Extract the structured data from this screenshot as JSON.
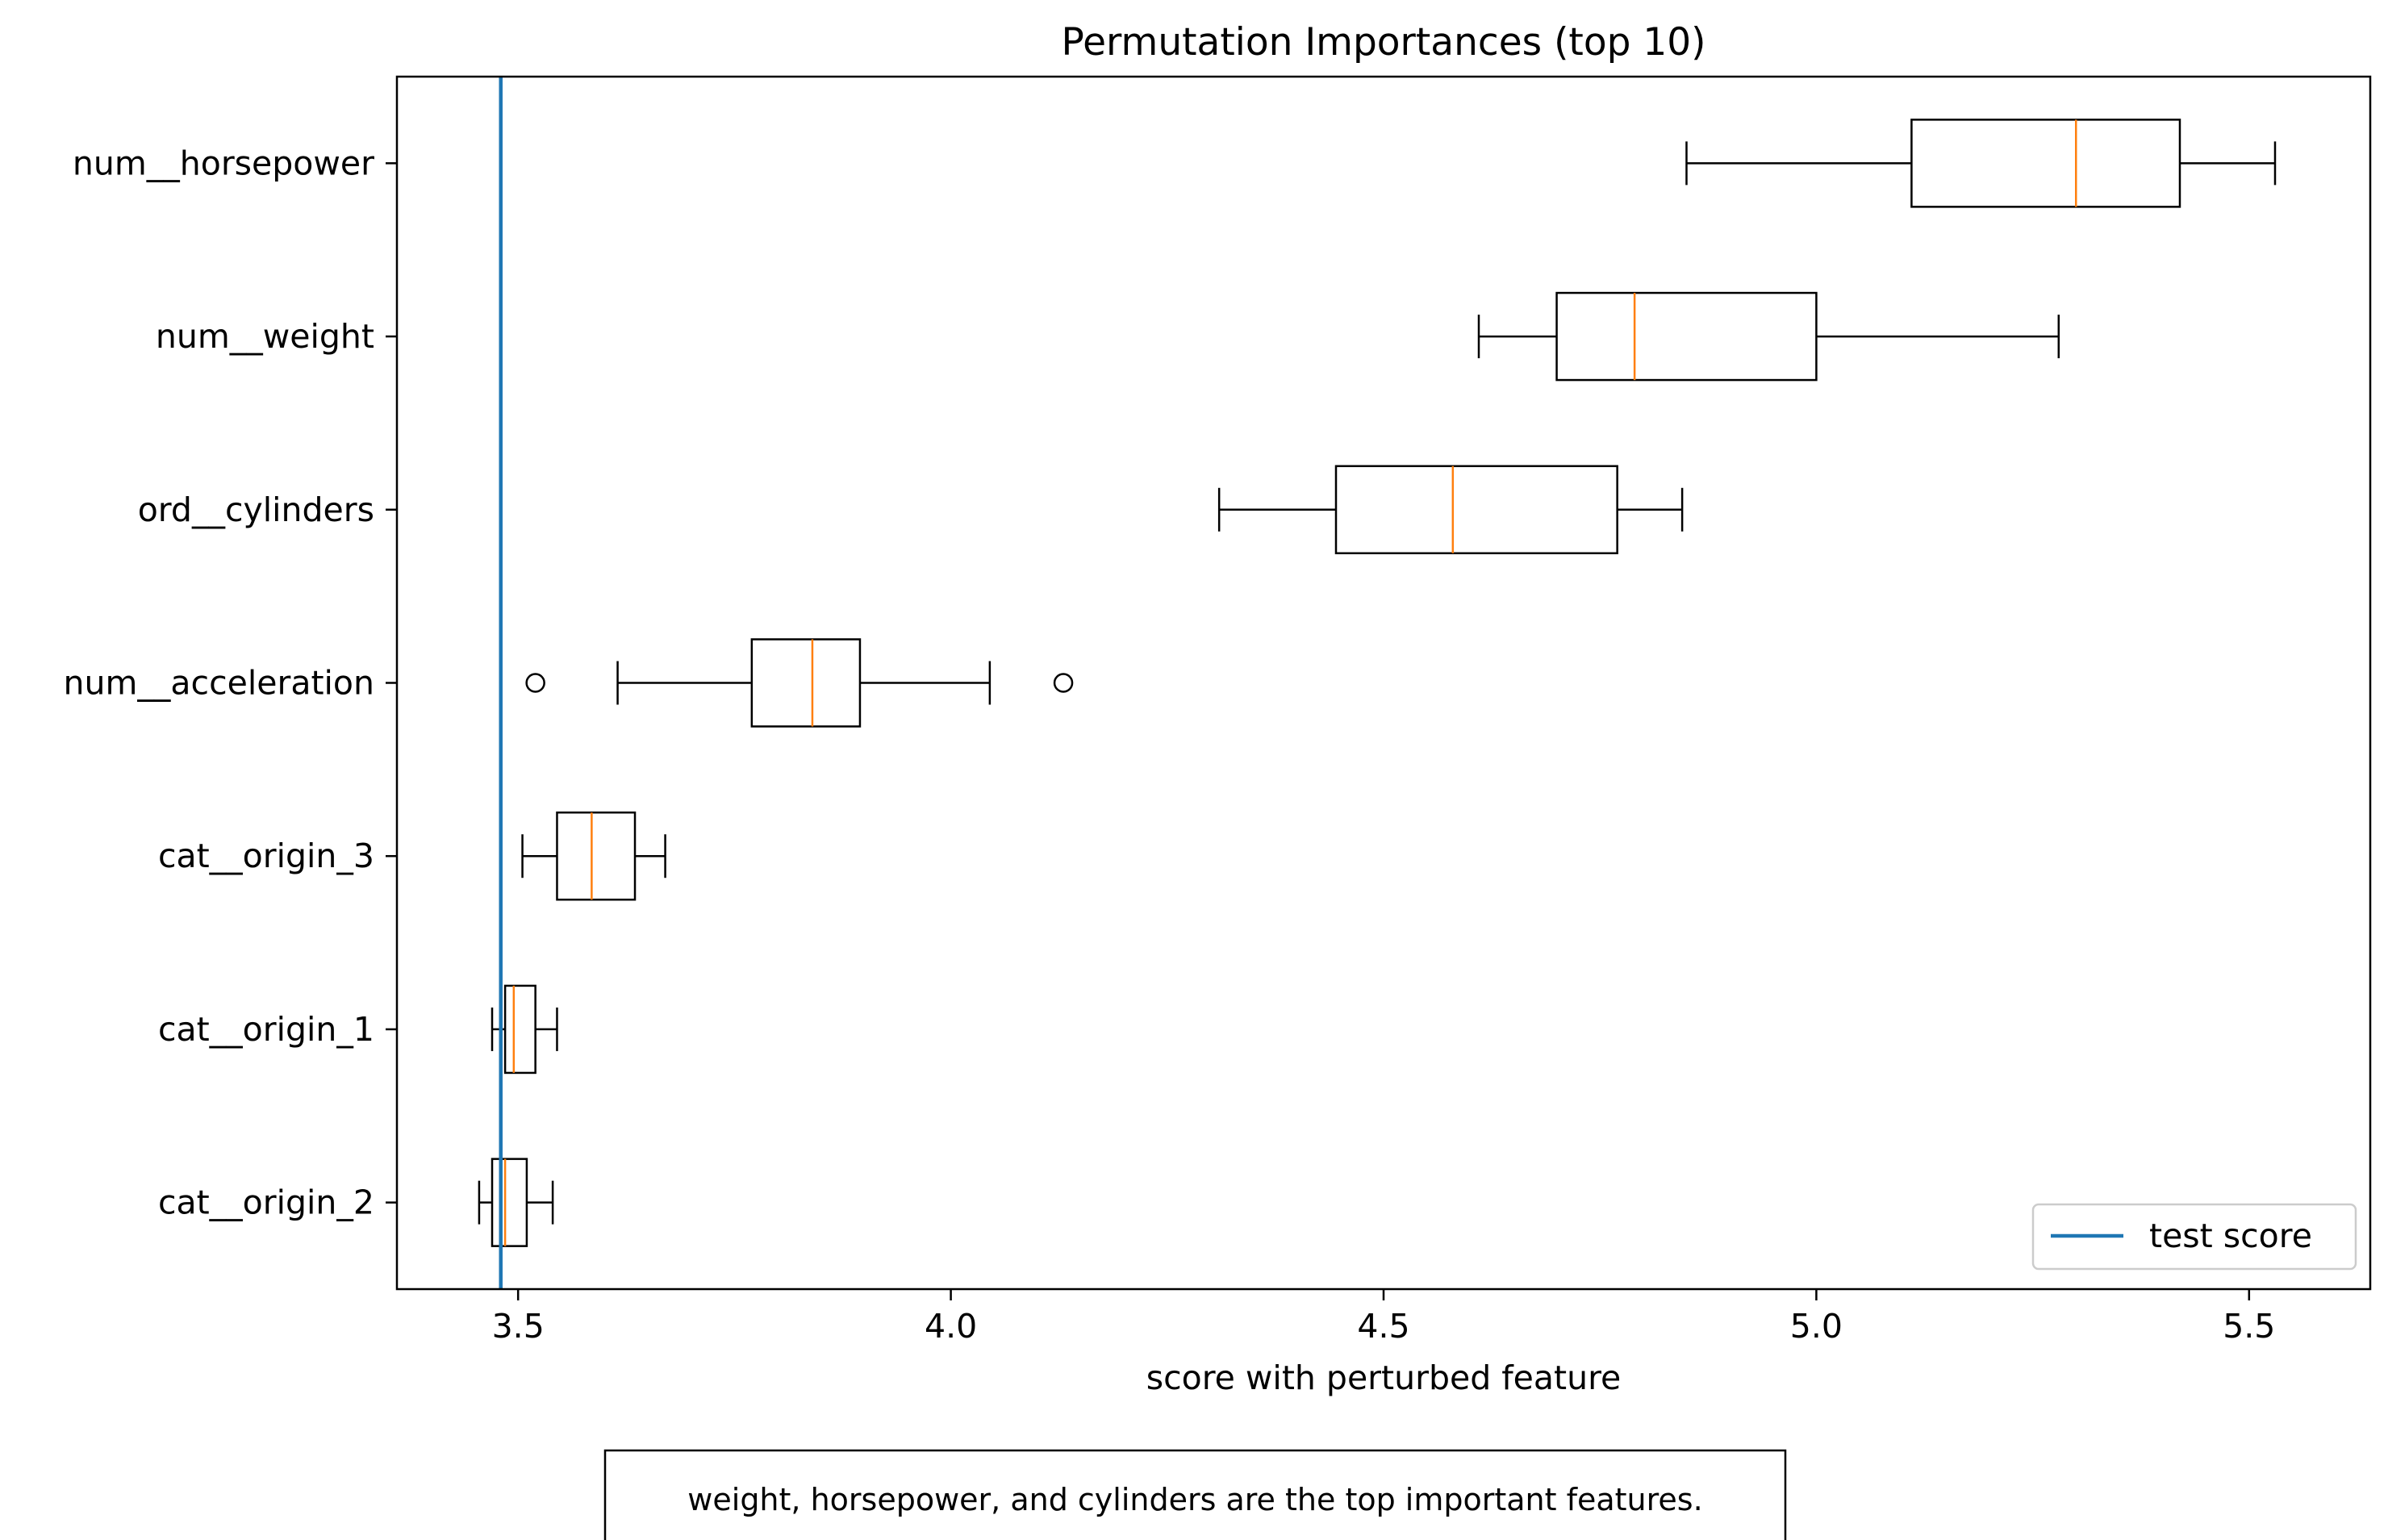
{
  "chart_data": {
    "type": "boxplot",
    "orientation": "horizontal",
    "title": "Permutation Importances (top 10)",
    "xlabel": "score with perturbed feature",
    "ylabel": "",
    "xlim": [
      3.36,
      5.64
    ],
    "xticks": [
      "3.5",
      "4.0",
      "4.5",
      "5.0",
      "5.5"
    ],
    "categories": [
      "num__horsepower",
      "num__weight",
      "ord__cylinders",
      "num__acceleration",
      "cat__origin_3",
      "cat__origin_1",
      "cat__origin_2"
    ],
    "boxes": [
      {
        "label": "num__horsepower",
        "whisker_low": 4.85,
        "q1": 5.11,
        "median": 5.3,
        "q3": 5.42,
        "whisker_high": 5.53,
        "outliers": []
      },
      {
        "label": "num__weight",
        "whisker_low": 4.61,
        "q1": 4.7,
        "median": 4.79,
        "q3": 5.0,
        "whisker_high": 5.28,
        "outliers": []
      },
      {
        "label": "ord__cylinders",
        "whisker_low": 4.31,
        "q1": 4.445,
        "median": 4.58,
        "q3": 4.77,
        "whisker_high": 4.845,
        "outliers": []
      },
      {
        "label": "num__acceleration",
        "whisker_low": 3.615,
        "q1": 3.77,
        "median": 3.84,
        "q3": 3.895,
        "whisker_high": 4.045,
        "outliers": [
          3.52,
          4.13
        ]
      },
      {
        "label": "cat__origin_3",
        "whisker_low": 3.505,
        "q1": 3.545,
        "median": 3.585,
        "q3": 3.635,
        "whisker_high": 3.67,
        "outliers": []
      },
      {
        "label": "cat__origin_1",
        "whisker_low": 3.47,
        "q1": 3.485,
        "median": 3.495,
        "q3": 3.52,
        "whisker_high": 3.545,
        "outliers": []
      },
      {
        "label": "cat__origin_2",
        "whisker_low": 3.455,
        "q1": 3.47,
        "median": 3.485,
        "q3": 3.51,
        "whisker_high": 3.54,
        "outliers": []
      }
    ],
    "reference_line": {
      "label": "test score",
      "x": 3.48,
      "color": "#1f77b4"
    },
    "legend": {
      "position": "bottom-right",
      "entries": [
        "test score"
      ]
    },
    "median_color": "#ff7f0e",
    "grid": false
  },
  "caption": "weight, horsepower, and cylinders are the top important features."
}
